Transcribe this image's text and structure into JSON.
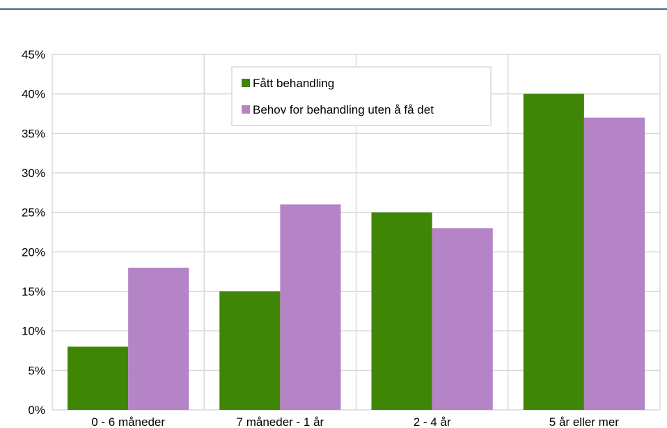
{
  "chart_data": {
    "type": "bar",
    "categories": [
      "0 - 6 måneder",
      "7 måneder - 1 år",
      "2 - 4 år",
      "5 år eller mer"
    ],
    "series": [
      {
        "name": "Fått behandling",
        "color": "#3f8506",
        "values": [
          8,
          15,
          25,
          40
        ]
      },
      {
        "name": "Behov for behandling uten å få det",
        "color": "#b584c6",
        "values": [
          18,
          26,
          23,
          37
        ]
      }
    ],
    "ylim": [
      0,
      45
    ],
    "yticks": [
      "0%",
      "5%",
      "10%",
      "15%",
      "20%",
      "25%",
      "30%",
      "35%",
      "40%",
      "45%"
    ],
    "y_unit": "%",
    "grid": true,
    "legend_position": "top-center",
    "title": "",
    "xlabel": "",
    "ylabel": ""
  }
}
